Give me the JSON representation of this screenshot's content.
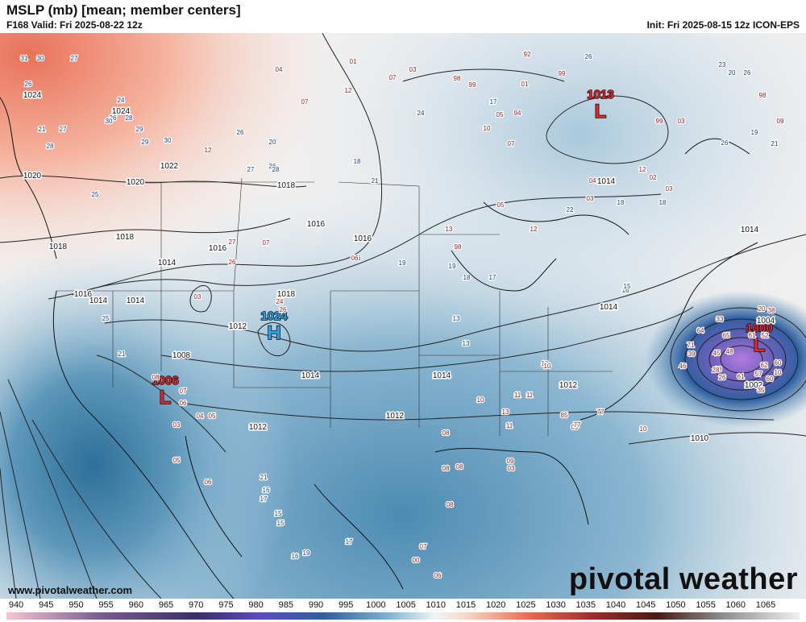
{
  "header": {
    "title": "MSLP (mb) [mean; member centers]",
    "valid": "F168 Valid: Fri 2025-08-22 12z",
    "init": "Init: Fri 2025-08-15 12z ICON-EPS"
  },
  "footer": {
    "site": "www.pivotalweather.com",
    "logo": "pivotal weather",
    "scale_ticks": [
      "940",
      "945",
      "950",
      "955",
      "960",
      "965",
      "970",
      "975",
      "980",
      "985",
      "990",
      "995",
      "1000",
      "1005",
      "1010",
      "1015",
      "1020",
      "1025",
      "1030",
      "1035",
      "1040",
      "1045",
      "1050",
      "1055",
      "1060",
      "1065"
    ]
  },
  "pressure_centers": [
    {
      "kind": "L",
      "value": "1006",
      "color": "#e8222a"
    },
    {
      "kind": "H",
      "value": "1024",
      "color": "#2aa0e8"
    },
    {
      "kind": "L",
      "value": "1013",
      "color": "#e8222a"
    },
    {
      "kind": "L",
      "value": "1000",
      "color": "#e8222a"
    }
  ],
  "isobar_labels": [
    "1024",
    "1024",
    "1022",
    "1020",
    "1020",
    "1018",
    "1018",
    "1018",
    "1016",
    "1016",
    "1016",
    "1014",
    "1014",
    "1014",
    "1014",
    "1014",
    "1014",
    "1012",
    "1012",
    "1012",
    "1012",
    "1010",
    "1008",
    "1004",
    "1002",
    "1014",
    "1014",
    "1016",
    "1018"
  ],
  "member_labels": [
    {
      "t": "31",
      "c": "b"
    },
    {
      "t": "30",
      "c": "b"
    },
    {
      "t": "27",
      "c": "b"
    },
    {
      "t": "26",
      "c": "b"
    },
    {
      "t": "24",
      "c": "b"
    },
    {
      "t": "26",
      "c": "b"
    },
    {
      "t": "28",
      "c": "b"
    },
    {
      "t": "30",
      "c": "b"
    },
    {
      "t": "29",
      "c": "b"
    },
    {
      "t": "21",
      "c": "b"
    },
    {
      "t": "27",
      "c": "b"
    },
    {
      "t": "28",
      "c": "b"
    },
    {
      "t": "29",
      "c": "b"
    },
    {
      "t": "30",
      "c": "b"
    },
    {
      "t": "12",
      "c": "r"
    },
    {
      "t": "26",
      "c": "b"
    },
    {
      "t": "20",
      "c": "b"
    },
    {
      "t": "26",
      "c": "b"
    },
    {
      "t": "27",
      "c": "b"
    },
    {
      "t": "28",
      "c": "b"
    },
    {
      "t": "25",
      "c": "b"
    },
    {
      "t": "18",
      "c": "b"
    },
    {
      "t": "21",
      "c": "b"
    },
    {
      "t": "04",
      "c": "r"
    },
    {
      "t": "07",
      "c": "r"
    },
    {
      "t": "12",
      "c": "r"
    },
    {
      "t": "01",
      "c": "r"
    },
    {
      "t": "07",
      "c": "r"
    },
    {
      "t": "03",
      "c": "r"
    },
    {
      "t": "92",
      "c": "r"
    },
    {
      "t": "26",
      "c": "b"
    },
    {
      "t": "99",
      "c": "r"
    },
    {
      "t": "98",
      "c": "r"
    },
    {
      "t": "99",
      "c": "r"
    },
    {
      "t": "01",
      "c": "r"
    },
    {
      "t": "17",
      "c": "b"
    },
    {
      "t": "05",
      "c": "r"
    },
    {
      "t": "94",
      "c": "r"
    },
    {
      "t": "10",
      "c": "r"
    },
    {
      "t": "07",
      "c": "r"
    },
    {
      "t": "99",
      "c": "r"
    },
    {
      "t": "03",
      "c": "r"
    },
    {
      "t": "23",
      "c": "b"
    },
    {
      "t": "20",
      "c": "b"
    },
    {
      "t": "26",
      "c": "b"
    },
    {
      "t": "19",
      "c": "b"
    },
    {
      "t": "21",
      "c": "b"
    },
    {
      "t": "98",
      "c": "r"
    },
    {
      "t": "09",
      "c": "r"
    },
    {
      "t": "24",
      "c": "b"
    },
    {
      "t": "26",
      "c": "b"
    },
    {
      "t": "04",
      "c": "r"
    },
    {
      "t": "03",
      "c": "r"
    },
    {
      "t": "12",
      "c": "r"
    },
    {
      "t": "02",
      "c": "r"
    },
    {
      "t": "03",
      "c": "r"
    },
    {
      "t": "05",
      "c": "r"
    },
    {
      "t": "22",
      "c": "b"
    },
    {
      "t": "18",
      "c": "b"
    },
    {
      "t": "18",
      "c": "b"
    },
    {
      "t": "13",
      "c": "r"
    },
    {
      "t": "12",
      "c": "r"
    },
    {
      "t": "98",
      "c": "r"
    },
    {
      "t": "19",
      "c": "b"
    },
    {
      "t": "18",
      "c": "b"
    },
    {
      "t": "17",
      "c": "b"
    },
    {
      "t": "19",
      "c": "b"
    },
    {
      "t": "06",
      "c": "r"
    },
    {
      "t": "07",
      "c": "r"
    },
    {
      "t": "27",
      "c": "r"
    },
    {
      "t": "26",
      "c": "r"
    },
    {
      "t": "03",
      "c": "r"
    },
    {
      "t": "24",
      "c": "r"
    },
    {
      "t": "26",
      "c": "r"
    },
    {
      "t": "06",
      "c": "r"
    },
    {
      "t": "13",
      "c": "b"
    },
    {
      "t": "13",
      "c": "b"
    },
    {
      "t": "10",
      "c": "r"
    },
    {
      "t": "10",
      "c": "r"
    },
    {
      "t": "25",
      "c": "b"
    },
    {
      "t": "21",
      "c": "b"
    },
    {
      "t": "08",
      "c": "r"
    },
    {
      "t": "07",
      "c": "r"
    },
    {
      "t": "06",
      "c": "r"
    },
    {
      "t": "04",
      "c": "r"
    },
    {
      "t": "05",
      "c": "r"
    },
    {
      "t": "03",
      "c": "r"
    },
    {
      "t": "05",
      "c": "r"
    },
    {
      "t": "06",
      "c": "r"
    },
    {
      "t": "11",
      "c": "r"
    },
    {
      "t": "11",
      "c": "r"
    },
    {
      "t": "13",
      "c": "r"
    },
    {
      "t": "11",
      "c": "r"
    },
    {
      "t": "85",
      "c": "r"
    },
    {
      "t": "09",
      "c": "r"
    },
    {
      "t": "77",
      "c": "r"
    },
    {
      "t": "77",
      "c": "r"
    },
    {
      "t": "10",
      "c": "r"
    },
    {
      "t": "10",
      "c": "r"
    },
    {
      "t": "08",
      "c": "r"
    },
    {
      "t": "08",
      "c": "r"
    },
    {
      "t": "08",
      "c": "r"
    },
    {
      "t": "08",
      "c": "r"
    },
    {
      "t": "07",
      "c": "r"
    },
    {
      "t": "00",
      "c": "r"
    },
    {
      "t": "06",
      "c": "r"
    },
    {
      "t": "09",
      "c": "r"
    },
    {
      "t": "03",
      "c": "r"
    },
    {
      "t": "21",
      "c": "b"
    },
    {
      "t": "16",
      "c": "b"
    },
    {
      "t": "17",
      "c": "b"
    },
    {
      "t": "15",
      "c": "b"
    },
    {
      "t": "15",
      "c": "b"
    },
    {
      "t": "19",
      "c": "b"
    },
    {
      "t": "16",
      "c": "b"
    },
    {
      "t": "17",
      "c": "b"
    },
    {
      "t": "46",
      "c": "r"
    },
    {
      "t": "71",
      "c": "r"
    },
    {
      "t": "39",
      "c": "r"
    },
    {
      "t": "64",
      "c": "r"
    },
    {
      "t": "33",
      "c": "r"
    },
    {
      "t": "65",
      "c": "r"
    },
    {
      "t": "28",
      "c": "r"
    },
    {
      "t": "20",
      "c": "r"
    },
    {
      "t": "38",
      "c": "r"
    },
    {
      "t": "61",
      "c": "r"
    },
    {
      "t": "52",
      "c": "r"
    },
    {
      "t": "45",
      "c": "r"
    },
    {
      "t": "48",
      "c": "r"
    },
    {
      "t": "28",
      "c": "r"
    },
    {
      "t": "26",
      "c": "r"
    },
    {
      "t": "61",
      "c": "r"
    },
    {
      "t": "35",
      "c": "r"
    },
    {
      "t": "57",
      "c": "r"
    },
    {
      "t": "60",
      "c": "r"
    },
    {
      "t": "10",
      "c": "r"
    },
    {
      "t": "16",
      "c": "b"
    },
    {
      "t": "15",
      "c": "b"
    },
    {
      "t": "62",
      "c": "r"
    },
    {
      "t": "60",
      "c": "r"
    }
  ]
}
